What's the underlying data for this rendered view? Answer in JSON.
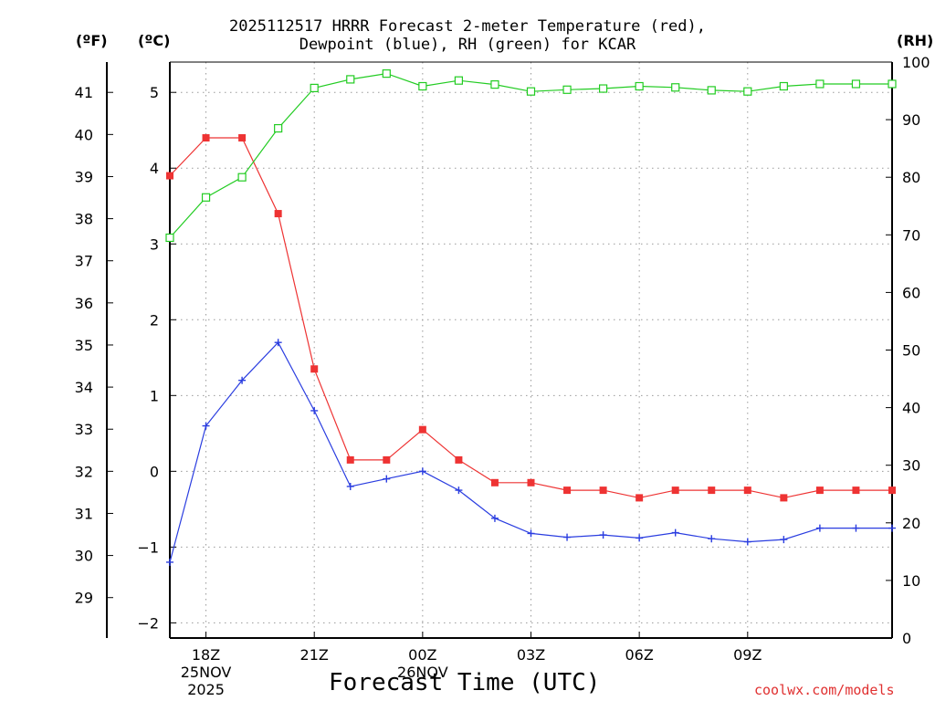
{
  "chart_data": {
    "type": "line",
    "title_line1": "2025112517 HRRR Forecast 2-meter Temperature (red),",
    "title_line2": "Dewpoint (blue), RH (green) for KCAR",
    "xlabel": "Forecast Time (UTC)",
    "credit": "coolwx.com/models",
    "units": {
      "fahrenheit": "(ºF)",
      "celsius": "(ºC)",
      "rh": "(RH)"
    },
    "x_hours": [
      17,
      18,
      19,
      20,
      21,
      22,
      23,
      24,
      25,
      26,
      27,
      28,
      29,
      30,
      31,
      32,
      33,
      34,
      35,
      36,
      37
    ],
    "xlim": [
      17,
      37
    ],
    "x_ticks": [
      {
        "hour": 18,
        "label": "18Z",
        "sub1": "25NOV",
        "sub2": "2025"
      },
      {
        "hour": 21,
        "label": "21Z",
        "sub1": "",
        "sub2": ""
      },
      {
        "hour": 24,
        "label": "00Z",
        "sub1": "26NOV",
        "sub2": ""
      },
      {
        "hour": 27,
        "label": "03Z",
        "sub1": "",
        "sub2": ""
      },
      {
        "hour": 30,
        "label": "06Z",
        "sub1": "",
        "sub2": ""
      },
      {
        "hour": 33,
        "label": "09Z",
        "sub1": "",
        "sub2": ""
      }
    ],
    "celsius_axis": {
      "ylim": [
        -2.2,
        5.4
      ],
      "ticks": [
        "−2",
        "−1",
        "0",
        "1",
        "2",
        "3",
        "4",
        "5"
      ],
      "tick_values": [
        -2,
        -1,
        0,
        1,
        2,
        3,
        4,
        5
      ]
    },
    "fahrenheit_axis": {
      "ticks": [
        "29",
        "30",
        "31",
        "32",
        "33",
        "34",
        "35",
        "36",
        "37",
        "38",
        "39",
        "40",
        "41"
      ],
      "tick_values": [
        29,
        30,
        31,
        32,
        33,
        34,
        35,
        36,
        37,
        38,
        39,
        40,
        41
      ]
    },
    "rh_axis": {
      "ylim": [
        0,
        100
      ],
      "ticks": [
        "0",
        "10",
        "20",
        "30",
        "40",
        "50",
        "60",
        "70",
        "80",
        "90",
        "100"
      ],
      "tick_values": [
        0,
        10,
        20,
        30,
        40,
        50,
        60,
        70,
        80,
        90,
        100
      ]
    },
    "grid": true,
    "series": [
      {
        "name": "Temperature",
        "axis": "celsius",
        "color": "#ee3333",
        "marker": "filled-square",
        "values": [
          3.9,
          4.4,
          4.4,
          3.4,
          1.35,
          0.15,
          0.15,
          0.55,
          0.15,
          -0.15,
          -0.15,
          -0.25,
          -0.25,
          -0.35,
          -0.25,
          -0.25,
          -0.25,
          -0.35,
          -0.25,
          -0.25,
          -0.25
        ]
      },
      {
        "name": "Dewpoint",
        "axis": "celsius",
        "color": "#2a3de0",
        "marker": "plus",
        "values": [
          -1.2,
          0.6,
          1.2,
          1.7,
          0.8,
          -0.2,
          -0.1,
          0.0,
          -0.25,
          -0.62,
          -0.82,
          -0.87,
          -0.84,
          -0.88,
          -0.81,
          -0.89,
          -0.93,
          -0.9,
          -0.75,
          -0.75,
          -0.75
        ]
      },
      {
        "name": "RH",
        "axis": "rh",
        "color": "#22cc22",
        "marker": "open-square",
        "values": [
          69.5,
          76.5,
          80,
          88.5,
          95.5,
          97,
          98,
          95.8,
          96.8,
          96.1,
          94.9,
          95.2,
          95.4,
          95.8,
          95.6,
          95.1,
          94.9,
          95.8,
          96.2,
          96.2,
          96.2
        ]
      }
    ]
  }
}
